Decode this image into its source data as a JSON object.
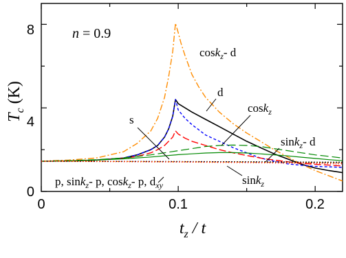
{
  "chart_data": {
    "type": "line",
    "xlim": [
      0,
      0.22
    ],
    "ylim": [
      0,
      9
    ],
    "x_ticks": [
      "0",
      "0.1",
      "0.2"
    ],
    "y_ticks": [
      "0",
      "4",
      "8"
    ],
    "xlabel": {
      "main": "t",
      "sub": "z",
      "rest": " / t"
    },
    "ylabel": {
      "main": "T",
      "sub": "c",
      "rest": " (K)"
    },
    "grid": false,
    "legend": "none",
    "annotations": {
      "n_label": {
        "italic": "n",
        "rest": " = 0.9"
      },
      "cos_d": {
        "pre": "cos",
        "k": "k",
        "sub": "z",
        "post": "- d"
      },
      "d": {
        "text": "d"
      },
      "s": {
        "text": "s"
      },
      "cos": {
        "pre": "cos",
        "k": "k",
        "sub": "z"
      },
      "sin_d": {
        "pre": "sin",
        "k": "k",
        "sub": "z",
        "post": "- d"
      },
      "sin": {
        "pre": "sin",
        "k": "k",
        "sub": "z"
      },
      "p_group": {
        "a": "p, sin",
        "b": "k",
        "c": "z",
        "d": "- p, cos",
        "e": "k",
        "f": "z",
        "g": "- p, d",
        "h": "xy"
      }
    },
    "series": [
      {
        "key": "cos_d",
        "color": "#FF8C00",
        "dash": "9 3 2 3",
        "width": 1.4,
        "x": [
          0,
          0.02,
          0.04,
          0.06,
          0.07,
          0.08,
          0.085,
          0.09,
          0.093,
          0.096,
          0.098,
          0.1,
          0.102,
          0.105,
          0.11,
          0.115,
          0.12,
          0.13,
          0.14,
          0.15,
          0.16,
          0.17,
          0.18,
          0.19,
          0.2,
          0.21,
          0.22
        ],
        "y": [
          1.45,
          1.5,
          1.6,
          1.9,
          2.3,
          2.9,
          3.5,
          4.5,
          5.5,
          6.7,
          8.05,
          7.6,
          7.1,
          6.5,
          5.6,
          5.0,
          4.5,
          3.8,
          3.25,
          2.8,
          2.4,
          2.0,
          1.65,
          1.3,
          1.0,
          0.75,
          0.5
        ]
      },
      {
        "key": "d",
        "color": "#000000",
        "dash": "",
        "width": 1.6,
        "x": [
          0,
          0.02,
          0.04,
          0.06,
          0.07,
          0.08,
          0.085,
          0.09,
          0.093,
          0.096,
          0.098,
          0.1,
          0.11,
          0.12,
          0.13,
          0.14,
          0.15,
          0.16,
          0.17,
          0.18,
          0.19,
          0.2,
          0.21,
          0.22
        ],
        "y": [
          1.45,
          1.46,
          1.5,
          1.6,
          1.75,
          2.0,
          2.2,
          2.6,
          3.0,
          3.6,
          4.4,
          4.2,
          3.8,
          3.45,
          3.1,
          2.75,
          2.4,
          2.1,
          1.8,
          1.55,
          1.3,
          1.12,
          1.0,
          0.9
        ]
      },
      {
        "key": "cos",
        "color": "#0000FF",
        "dash": "4 3",
        "width": 1.4,
        "x": [
          0,
          0.02,
          0.04,
          0.06,
          0.07,
          0.08,
          0.085,
          0.09,
          0.093,
          0.096,
          0.098,
          0.1,
          0.105,
          0.11,
          0.115,
          0.12,
          0.13,
          0.14,
          0.15,
          0.16,
          0.17,
          0.18,
          0.19,
          0.2,
          0.21,
          0.22
        ],
        "y": [
          1.45,
          1.46,
          1.5,
          1.6,
          1.75,
          2.0,
          2.2,
          2.6,
          3.0,
          3.6,
          4.4,
          3.9,
          3.5,
          3.2,
          2.95,
          2.7,
          2.4,
          2.1,
          1.85,
          1.6,
          1.45,
          1.32,
          1.25,
          1.2,
          1.18,
          1.15
        ]
      },
      {
        "key": "s",
        "color": "#FF0000",
        "dash": "10 4",
        "width": 1.4,
        "x": [
          0,
          0.02,
          0.04,
          0.06,
          0.07,
          0.08,
          0.085,
          0.09,
          0.093,
          0.096,
          0.098,
          0.1,
          0.105,
          0.11,
          0.12,
          0.13,
          0.14,
          0.15,
          0.16,
          0.17,
          0.18,
          0.19,
          0.2,
          0.21,
          0.22
        ],
        "y": [
          1.45,
          1.46,
          1.5,
          1.58,
          1.68,
          1.85,
          2.0,
          2.2,
          2.4,
          2.6,
          2.9,
          2.75,
          2.55,
          2.4,
          2.2,
          2.0,
          1.85,
          1.72,
          1.6,
          1.5,
          1.42,
          1.35,
          1.3,
          1.26,
          1.22
        ]
      },
      {
        "key": "sin_d",
        "color": "#008800",
        "dash": "12 5",
        "width": 1.2,
        "x": [
          0,
          0.02,
          0.04,
          0.06,
          0.08,
          0.1,
          0.11,
          0.12,
          0.13,
          0.14,
          0.15,
          0.16,
          0.17,
          0.18,
          0.19,
          0.2,
          0.21,
          0.22
        ],
        "y": [
          1.45,
          1.47,
          1.52,
          1.6,
          1.75,
          1.95,
          2.05,
          2.15,
          2.2,
          2.22,
          2.2,
          2.15,
          2.05,
          1.95,
          1.85,
          1.75,
          1.68,
          1.6
        ]
      },
      {
        "key": "sin",
        "color": "#008800",
        "dash": "",
        "width": 1.2,
        "x": [
          0,
          0.02,
          0.04,
          0.06,
          0.08,
          0.1,
          0.11,
          0.12,
          0.13,
          0.14,
          0.15,
          0.16,
          0.17,
          0.18,
          0.19,
          0.2,
          0.21,
          0.22
        ],
        "y": [
          1.45,
          1.46,
          1.5,
          1.56,
          1.65,
          1.76,
          1.8,
          1.84,
          1.86,
          1.86,
          1.84,
          1.8,
          1.75,
          1.7,
          1.64,
          1.58,
          1.52,
          1.47
        ]
      },
      {
        "key": "p1",
        "color": "#000000",
        "dash": "2 2",
        "width": 1.4,
        "x": [
          0,
          0.05,
          0.1,
          0.15,
          0.2,
          0.22
        ],
        "y": [
          1.45,
          1.44,
          1.43,
          1.42,
          1.4,
          1.4
        ]
      },
      {
        "key": "p2",
        "color": "#FF8C00",
        "dash": "2 3",
        "width": 1.4,
        "x": [
          0,
          0.05,
          0.1,
          0.15,
          0.2,
          0.22
        ],
        "y": [
          1.45,
          1.44,
          1.42,
          1.4,
          1.37,
          1.36
        ]
      },
      {
        "key": "p3",
        "color": "#0000FF",
        "dash": "1 3",
        "width": 1.4,
        "x": [
          0,
          0.05,
          0.1,
          0.15,
          0.2,
          0.22
        ],
        "y": [
          1.45,
          1.44,
          1.42,
          1.39,
          1.35,
          1.33
        ]
      },
      {
        "key": "p4",
        "color": "#FF0000",
        "dash": "1 3",
        "width": 1.4,
        "x": [
          0,
          0.05,
          0.1,
          0.15,
          0.2,
          0.22
        ],
        "y": [
          1.45,
          1.43,
          1.41,
          1.38,
          1.34,
          1.32
        ]
      }
    ]
  }
}
